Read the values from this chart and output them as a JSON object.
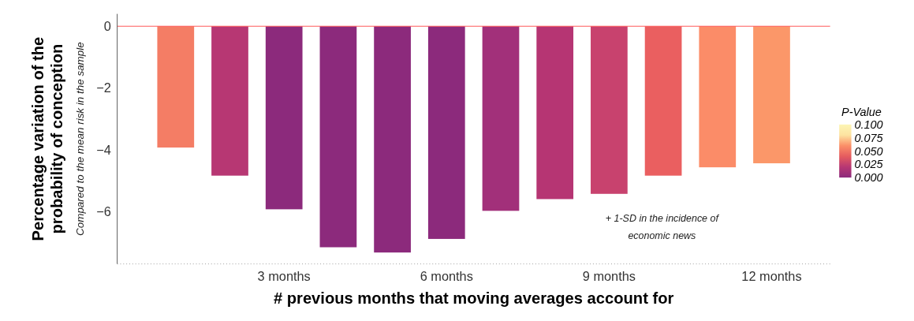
{
  "chart_data": {
    "type": "bar",
    "xlabel": "# previous months that moving averages account for",
    "ylabel": "Percentage variation of the probability of conception",
    "subtitle": "Compared to the mean risk in the sample",
    "categories": [
      null,
      null,
      "3 months",
      null,
      null,
      "6 months",
      null,
      null,
      "9 months",
      null,
      null,
      "12 months"
    ],
    "values": [
      -3.93,
      -4.84,
      -5.93,
      -7.16,
      -7.33,
      -6.89,
      -5.98,
      -5.6,
      -5.43,
      -4.84,
      -4.57,
      -4.44
    ],
    "colors": [
      "#f47d65",
      "#b73773",
      "#8c2a7c",
      "#8c2a7c",
      "#8c2a7c",
      "#8c2a7c",
      "#a2307a",
      "#b63573",
      "#c8426e",
      "#ea5f60",
      "#fb8c68",
      "#fb9769"
    ],
    "ylim": [
      -7.7,
      0.4
    ],
    "yticks": [
      0,
      {
        "value": -2,
        "label": "−2"
      },
      {
        "value": -4,
        "label": "−4"
      },
      {
        "value": -6,
        "label": "−6"
      }
    ],
    "ref_lines": [
      {
        "axis": "y",
        "value": 0,
        "color": "#ff5a5a"
      }
    ],
    "clabel": "P-Value",
    "clim": [
      0,
      0.1
    ],
    "cticks": [
      {
        "value": 0,
        "label": "0.000"
      },
      {
        "value": 0.025,
        "label": "0.025"
      },
      {
        "value": 0.05,
        "label": "0.050"
      },
      {
        "value": 0.075,
        "label": "0.075"
      },
      {
        "value": 0.1,
        "label": "0.100"
      }
    ],
    "annotations": [
      "+ 1-SD in the incidence of economic news"
    ],
    "grid": false
  }
}
